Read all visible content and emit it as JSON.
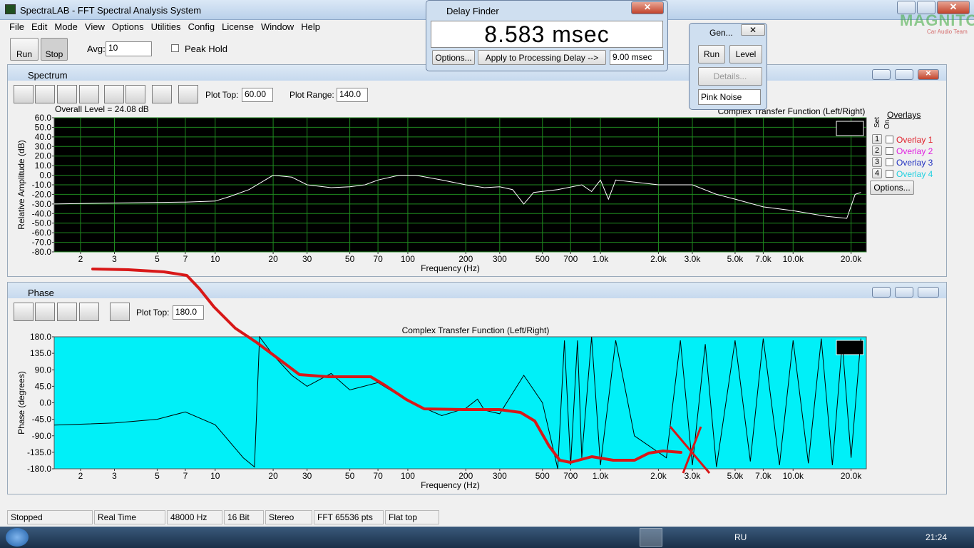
{
  "window": {
    "title": "SpectraLAB - FFT Spectral Analysis System"
  },
  "menu": [
    "File",
    "Edit",
    "Mode",
    "View",
    "Options",
    "Utilities",
    "Config",
    "License",
    "Window",
    "Help"
  ],
  "toolbar": {
    "run": "Run",
    "stop": "Stop",
    "avg_label": "Avg:",
    "avg_value": "10",
    "peak_hold": "Peak Hold"
  },
  "delay_finder": {
    "title": "Delay Finder",
    "reading": "8.583 msec",
    "options": "Options...",
    "apply": "Apply to Processing Delay -->",
    "delay": "9.00 msec"
  },
  "generator": {
    "title": "Gen...",
    "run": "Run",
    "level": "Level",
    "details": "Details...",
    "signal": "Pink Noise"
  },
  "watermark": {
    "name": "MAGNITOLA",
    "team": "Car Audio Team"
  },
  "spectrum": {
    "title": "Spectrum",
    "plot_top_label": "Plot Top:",
    "plot_top": "60.00",
    "plot_range_label": "Plot Range:",
    "plot_range": "140.0",
    "overall": "Overall Level = 24.08 dB",
    "overlays_title": "Overlays",
    "set": "Set",
    "on": "On",
    "overlays": [
      {
        "num": "1",
        "name": "Overlay 1",
        "color": "#e0202a"
      },
      {
        "num": "2",
        "name": "Overlay 2",
        "color": "#e020e0"
      },
      {
        "num": "3",
        "name": "Overlay 3",
        "color": "#2030c0"
      },
      {
        "num": "4",
        "name": "Overlay 4",
        "color": "#20d0e0"
      }
    ],
    "overlay_options": "Options...",
    "chart_data": {
      "type": "line",
      "title": "Complex Transfer Function (Left/Right)",
      "x_label": "Frequency (Hz)",
      "y_label": "Relative Amplitude (dB)",
      "log_x": true,
      "grid": true,
      "background": "#000000",
      "grid_color": "#1f8a1f",
      "xlim": [
        1.46,
        24000
      ],
      "xticks": [
        2,
        3,
        5,
        7,
        10,
        20,
        30,
        50,
        70,
        100,
        200,
        300,
        500,
        700,
        {
          "value": 1000,
          "label": "1.0k"
        },
        {
          "value": 2000,
          "label": "2.0k"
        },
        {
          "value": 3000,
          "label": "3.0k"
        },
        {
          "value": 5000,
          "label": "5.0k"
        },
        {
          "value": 7000,
          "label": "7.0k"
        },
        {
          "value": 10000,
          "label": "10.0k"
        },
        {
          "value": 20000,
          "label": "20.0k"
        }
      ],
      "ylim": [
        -80,
        60
      ],
      "yticks": [
        {
          "value": 60,
          "label": "60.0"
        },
        {
          "value": 50,
          "label": "50.0"
        },
        {
          "value": 40,
          "label": "40.0"
        },
        {
          "value": 30,
          "label": "30.0"
        },
        {
          "value": 20,
          "label": "20.0"
        },
        {
          "value": 10,
          "label": "10.0"
        },
        {
          "value": 0,
          "label": "0.0"
        },
        {
          "value": -10,
          "label": "-10.0"
        },
        {
          "value": -20,
          "label": "-20.0"
        },
        {
          "value": -30,
          "label": "-30.0"
        },
        {
          "value": -40,
          "label": "-40.0"
        },
        {
          "value": -50,
          "label": "-50.0"
        },
        {
          "value": -60,
          "label": "-60.0"
        },
        {
          "value": -70,
          "label": "-70.0"
        },
        {
          "value": -80,
          "label": "-80.0"
        }
      ],
      "series": [
        {
          "color": "#ffffff",
          "x": [
            1.46,
            3,
            7,
            10,
            12,
            15,
            20,
            25,
            30,
            40,
            50,
            60,
            70,
            90,
            110,
            150,
            200,
            250,
            300,
            350,
            400,
            450,
            600,
            800,
            900,
            1000,
            1100,
            1200,
            2000,
            3000,
            4000,
            5000,
            7000,
            10000,
            15000,
            19000,
            21000,
            22500
          ],
          "values": [
            -30,
            -29,
            -28,
            -27,
            -22,
            -15,
            0,
            -2,
            -10,
            -13,
            -12,
            -10,
            -5,
            0,
            0,
            -5,
            -10,
            -13,
            -12,
            -15,
            -30,
            -18,
            -15,
            -10,
            -17,
            -5,
            -25,
            -5,
            -10,
            -10,
            -20,
            -25,
            -33,
            -37,
            -43,
            -45,
            -20,
            -18
          ]
        }
      ]
    }
  },
  "phase": {
    "title": "Phase",
    "plot_top_label": "Plot Top:",
    "plot_top": "180.0",
    "chart_data": {
      "type": "line",
      "title": "Complex Transfer Function (Left/Right)",
      "x_label": "Frequency (Hz)",
      "y_label": "Phase (degrees)",
      "log_x": true,
      "grid": false,
      "background": "#00f0f8",
      "xlim": [
        1.46,
        24000
      ],
      "xticks": [
        2,
        3,
        5,
        7,
        10,
        20,
        30,
        50,
        70,
        100,
        200,
        300,
        500,
        700,
        {
          "value": 1000,
          "label": "1.0k"
        },
        {
          "value": 2000,
          "label": "2.0k"
        },
        {
          "value": 3000,
          "label": "3.0k"
        },
        {
          "value": 5000,
          "label": "5.0k"
        },
        {
          "value": 7000,
          "label": "7.0k"
        },
        {
          "value": 10000,
          "label": "10.0k"
        },
        {
          "value": 20000,
          "label": "20.0k"
        }
      ],
      "ylim": [
        -180,
        180
      ],
      "yticks": [
        {
          "value": 180,
          "label": "180.0"
        },
        {
          "value": 135,
          "label": "135.0"
        },
        {
          "value": 90,
          "label": "90.0"
        },
        {
          "value": 45,
          "label": "45.0"
        },
        {
          "value": 0,
          "label": "0.0"
        },
        {
          "value": -45,
          "label": "-45.0"
        },
        {
          "value": -90,
          "label": "-90.0"
        },
        {
          "value": -135,
          "label": "-135.0"
        },
        {
          "value": -180,
          "label": "-180.0"
        }
      ],
      "series": [
        {
          "color": "#000000",
          "x": [
            1.46,
            3,
            5,
            7,
            10,
            14,
            16,
            17,
            20,
            25,
            30,
            40,
            50,
            70,
            100,
            150,
            200,
            230,
            250,
            300,
            400,
            500,
            600,
            650,
            700,
            760,
            800,
            900,
            1000,
            1200,
            1500,
            2200,
            2600,
            3000,
            3500,
            4000,
            5000,
            6000,
            7000,
            8500,
            10000,
            12000,
            14000,
            16000,
            18000,
            20000,
            22500
          ],
          "values": [
            -61,
            -55,
            -45,
            -25,
            -60,
            -150,
            -175,
            180,
            130,
            75,
            45,
            80,
            35,
            55,
            5,
            -35,
            -15,
            10,
            -20,
            -30,
            75,
            0,
            -180,
            170,
            -170,
            170,
            -150,
            180,
            -170,
            170,
            -90,
            -150,
            170,
            -170,
            160,
            -175,
            170,
            -160,
            175,
            -170,
            170,
            -165,
            175,
            -170,
            165,
            -150,
            175
          ]
        }
      ]
    }
  },
  "status": [
    "Stopped",
    "Real Time",
    "48000 Hz",
    "16 Bit",
    "Stereo",
    "FFT 65536 pts",
    "Flat top"
  ],
  "taskbar": {
    "lang": "RU",
    "time": "21:24"
  }
}
